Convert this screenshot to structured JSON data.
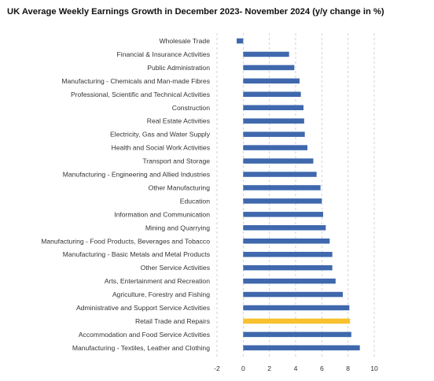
{
  "chart_data": {
    "type": "bar",
    "orientation": "horizontal",
    "title": "UK Average Weekly Earnings Growth in December 2023- November 2024 (y/y change in %)",
    "categories": [
      "Wholesale Trade",
      "Financial & Insurance Activities",
      "Public Administration",
      "Manufacturing - Chemicals and Man-made Fibres",
      "Professional, Scientific and Technical Activities",
      "Construction",
      "Real Estate Activities",
      "Electricity, Gas and Water Supply",
      "Health and Social Work Activities",
      "Transport and Storage",
      "Manufacturing - Engineering and Allied Industries",
      "Other Manufacturing",
      "Education",
      "Information and Communication",
      "Mining and Quarrying",
      "Manufacturing - Food Products, Beverages and Tobacco",
      "Manufacturing - Basic Metals and Metal Products",
      "Other Service Activities",
      "Arts, Entertainment and Recreation",
      "Agriculture, Forestry and Fishing",
      "Administrative and Support Service Activities",
      "Retail Trade and Repairs",
      "Accommodation and Food Service Activities",
      "Manufacturing - Textiles, Leather and Clothing"
    ],
    "values": [
      -0.5,
      3.5,
      3.9,
      4.3,
      4.4,
      4.6,
      4.65,
      4.7,
      4.9,
      5.35,
      5.6,
      5.9,
      6.0,
      6.1,
      6.3,
      6.6,
      6.8,
      6.8,
      7.05,
      7.6,
      8.1,
      8.15,
      8.25,
      8.9
    ],
    "highlight_category": "Retail Trade and Repairs",
    "xlim": [
      -2,
      10
    ],
    "x_ticks": [
      -2,
      0,
      2,
      4,
      6,
      8,
      10
    ],
    "grid": true,
    "colors": {
      "bar": "#3f68ad",
      "highlight": "#f8c12d"
    }
  }
}
